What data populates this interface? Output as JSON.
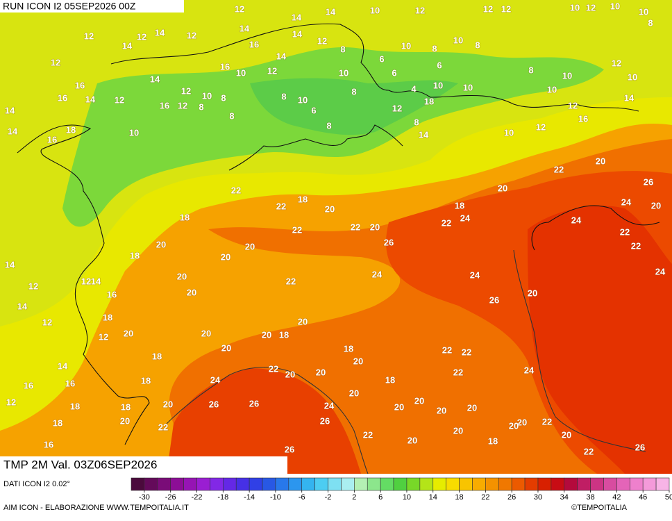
{
  "header": {
    "run": "RUN ICON I2 05SEP2026 00Z"
  },
  "map": {
    "title": "TMP 2M Val. 03Z06SEP2026",
    "labels": [
      12,
      14,
      14,
      10,
      12,
      12,
      12,
      10,
      12,
      10,
      10,
      8,
      14,
      14,
      12,
      12,
      14,
      12,
      14,
      12,
      16,
      14,
      8,
      6,
      10,
      8,
      10,
      8,
      12,
      16,
      14,
      16,
      10,
      12,
      10,
      6,
      6,
      8,
      10,
      12,
      10,
      10,
      12,
      8,
      8,
      10,
      6,
      8,
      4,
      10,
      10,
      10,
      14,
      14,
      16,
      14,
      12,
      16,
      12,
      8,
      8,
      12,
      18,
      12,
      16,
      14,
      18,
      16,
      10,
      8,
      8,
      14,
      10,
      12,
      22,
      22,
      18,
      20,
      22,
      20,
      22,
      26,
      24,
      22,
      18,
      20,
      22,
      20,
      26,
      20,
      24,
      24,
      22,
      22,
      24,
      24,
      24,
      26,
      20,
      22,
      20,
      20,
      20,
      20,
      16,
      18,
      20,
      18,
      20,
      20,
      18,
      20,
      20,
      18,
      20,
      22,
      22,
      22,
      24,
      18,
      20,
      18,
      12,
      18,
      24,
      22,
      20,
      20,
      18,
      20,
      26,
      26,
      24,
      26,
      20,
      18,
      22,
      20,
      20,
      20,
      20,
      20,
      22,
      20,
      20,
      20,
      22,
      20,
      18,
      20,
      22,
      26,
      26,
      18,
      16,
      18,
      16,
      16,
      12,
      14,
      14,
      12,
      14,
      12,
      12,
      14
    ]
  },
  "footer": {
    "source": "DATI ICON I2 0.02°",
    "credit": "AIM ICON - ELABORAZIONE WWW.TEMPOITALIA.IT",
    "brand": "©TEMPOITALIA"
  },
  "colorbar": {
    "ticks": [
      -30,
      -26,
      -22,
      -18,
      -14,
      -10,
      -6,
      -2,
      2,
      6,
      10,
      14,
      18,
      22,
      26,
      30,
      34,
      38,
      42,
      46,
      50
    ],
    "colors": [
      "#4b0a3c",
      "#640a5a",
      "#7a0c78",
      "#8c0e96",
      "#9614b4",
      "#9a1ed2",
      "#8228e6",
      "#6428e6",
      "#4630e6",
      "#3040e6",
      "#2858e4",
      "#2878ea",
      "#2c96ee",
      "#34b4f0",
      "#4ccdf2",
      "#7ee0f2",
      "#aaeef0",
      "#b4f0b4",
      "#8ce68c",
      "#64dc64",
      "#50d040",
      "#78d828",
      "#b4e418",
      "#e6ec00",
      "#f8dc00",
      "#f8c400",
      "#f8ac00",
      "#f49200",
      "#f07800",
      "#ec5a00",
      "#e43c00",
      "#d82000",
      "#c80c14",
      "#b40a3c",
      "#c01e64",
      "#cc3484",
      "#d84ca0",
      "#e464b8",
      "#ee80cc",
      "#f49ada",
      "#f8b4e6"
    ]
  }
}
